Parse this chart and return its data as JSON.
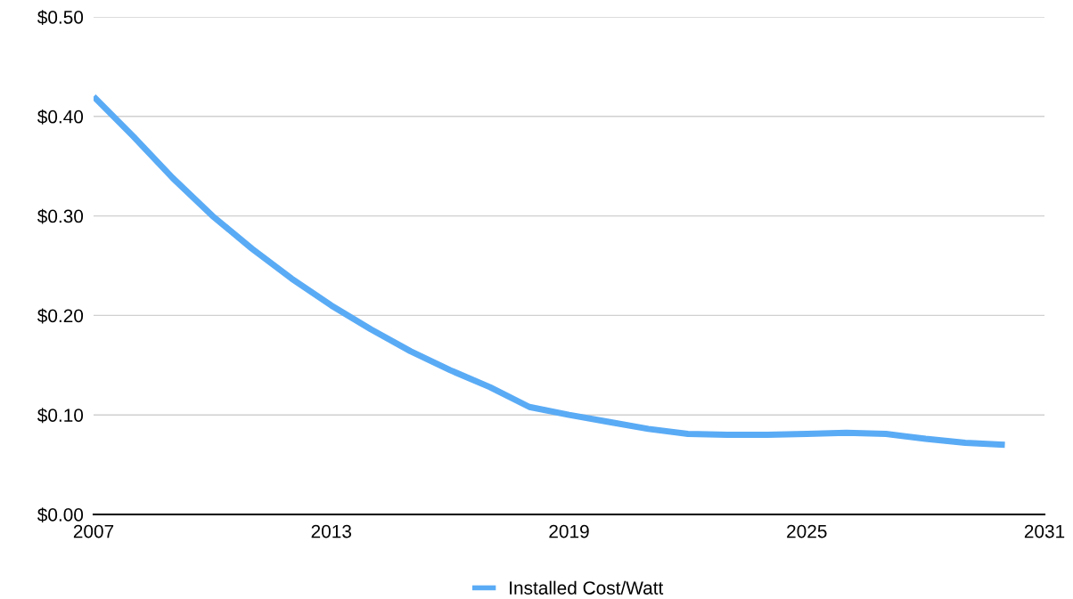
{
  "chart_data": {
    "type": "line",
    "x": [
      2007,
      2008,
      2009,
      2010,
      2011,
      2012,
      2013,
      2014,
      2015,
      2016,
      2017,
      2018,
      2019,
      2020,
      2021,
      2022,
      2023,
      2024,
      2025,
      2026,
      2027,
      2028,
      2029,
      2030
    ],
    "series": [
      {
        "name": "Installed Cost/Watt",
        "color": "#5aabf5",
        "values": [
          0.42,
          0.38,
          0.338,
          0.3,
          0.267,
          0.237,
          0.21,
          0.186,
          0.164,
          0.145,
          0.128,
          0.108,
          0.1,
          0.093,
          0.086,
          0.081,
          0.08,
          0.08,
          0.081,
          0.082,
          0.081,
          0.076,
          0.072,
          0.07
        ]
      }
    ],
    "xlim": [
      2007,
      2031
    ],
    "xticks": [
      2007,
      2013,
      2019,
      2025,
      2031
    ],
    "ylim": [
      0,
      0.5
    ],
    "yticks": [
      {
        "value": 0,
        "label": "$0.00"
      },
      {
        "value": 0.1,
        "label": "$0.10"
      },
      {
        "value": 0.2,
        "label": "$0.20"
      },
      {
        "value": 0.3,
        "label": "$0.30"
      },
      {
        "value": 0.4,
        "label": "$0.40"
      },
      {
        "value": 0.5,
        "label": "$0.50"
      }
    ],
    "grid": "y",
    "legend": "bottom",
    "marker": "none",
    "line_style": "solid"
  }
}
